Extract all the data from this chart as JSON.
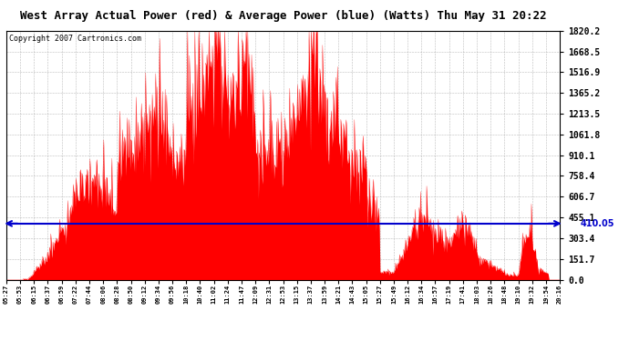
{
  "title": "West Array Actual Power (red) & Average Power (blue) (Watts) Thu May 31 20:22",
  "copyright": "Copyright 2007 Cartronics.com",
  "avg_power": 410.05,
  "ymax": 1820.2,
  "ymin": 0.0,
  "yticks": [
    0.0,
    151.7,
    303.4,
    455.1,
    606.7,
    758.4,
    910.1,
    1061.8,
    1213.5,
    1365.2,
    1516.9,
    1668.5,
    1820.2
  ],
  "xtick_labels": [
    "05:27",
    "05:53",
    "06:15",
    "06:37",
    "06:59",
    "07:22",
    "07:44",
    "08:06",
    "08:28",
    "08:50",
    "09:12",
    "09:34",
    "09:56",
    "10:18",
    "10:40",
    "11:02",
    "11:24",
    "11:47",
    "12:09",
    "12:31",
    "12:53",
    "13:15",
    "13:37",
    "13:59",
    "14:21",
    "14:43",
    "15:05",
    "15:27",
    "15:49",
    "16:12",
    "16:34",
    "16:57",
    "17:19",
    "17:41",
    "18:03",
    "18:26",
    "18:48",
    "19:10",
    "19:32",
    "19:54",
    "20:16"
  ],
  "bar_color": "#FF0000",
  "line_color": "#0000CC",
  "bg_color": "#FFFFFF",
  "grid_color": "#AAAAAA",
  "arrow_label": "410.05",
  "title_fontsize": 9,
  "copyright_fontsize": 6,
  "ytick_fontsize": 7,
  "xtick_fontsize": 5
}
